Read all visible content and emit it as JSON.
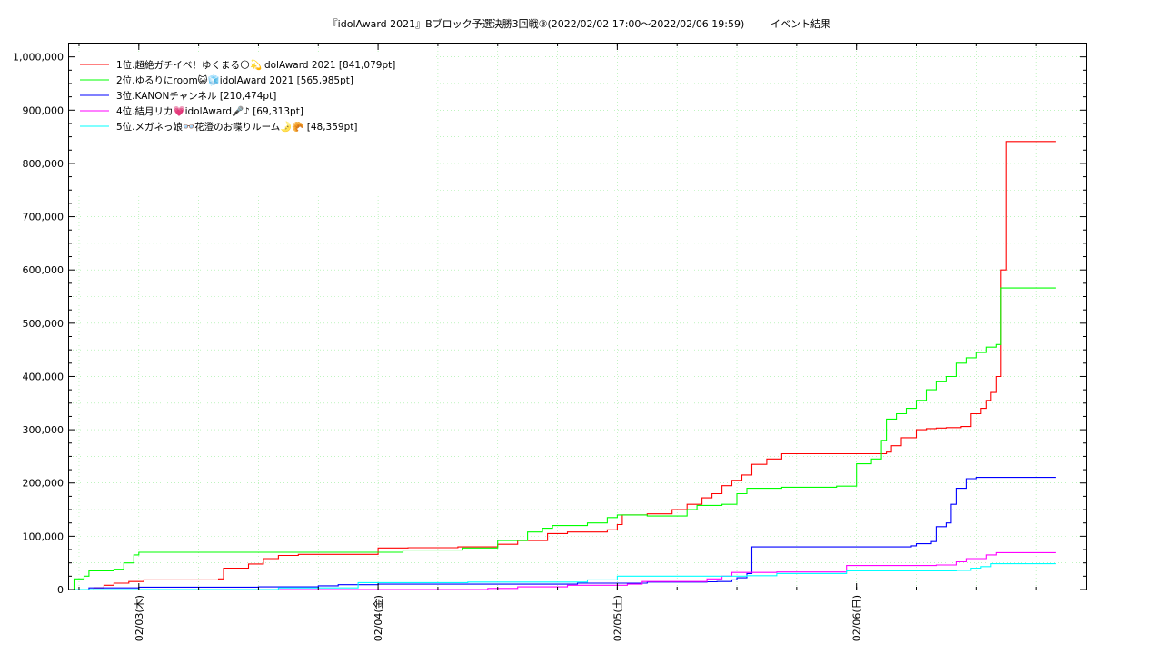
{
  "chart_data": {
    "type": "line",
    "title": "『idolAward 2021』Bブロック予選決勝3回戦③(2022/02/02 17:00～2022/02/06 19:59)",
    "subtitle": "イベント結果",
    "ylim": [
      0,
      1025000
    ],
    "y_ticks": [
      0,
      100000,
      200000,
      300000,
      400000,
      500000,
      600000,
      700000,
      800000,
      900000,
      1000000
    ],
    "y_tick_labels": [
      "0",
      "100,000",
      "200,000",
      "300,000",
      "400,000",
      "500,000",
      "600,000",
      "700,000",
      "800,000",
      "900,000",
      "1,000,000"
    ],
    "x_range": [
      "2022-02-02T17:00",
      "2022-02-06T23:00"
    ],
    "x_ticks": [
      {
        "x": "2022-02-03T00:00",
        "label": "02/03(木)"
      },
      {
        "x": "2022-02-04T00:00",
        "label": "02/04(金)"
      },
      {
        "x": "2022-02-05T00:00",
        "label": "02/05(土)"
      },
      {
        "x": "2022-02-06T00:00",
        "label": "02/06(日)"
      }
    ],
    "grid": true,
    "legend_position": "top-left",
    "series": [
      {
        "name": "1位.超絶ガチイベ！ゆくまる🌕💫idolAward 2021 [841,079pt]",
        "color": "#ff0000",
        "points": [
          [
            "2022-02-02T17:00",
            0
          ],
          [
            "2022-02-02T19:30",
            3000
          ],
          [
            "2022-02-02T20:30",
            8000
          ],
          [
            "2022-02-02T21:30",
            12000
          ],
          [
            "2022-02-02T23:00",
            15000
          ],
          [
            "2022-02-03T00:30",
            18000
          ],
          [
            "2022-02-03T08:00",
            20000
          ],
          [
            "2022-02-03T08:30",
            40000
          ],
          [
            "2022-02-03T11:00",
            48000
          ],
          [
            "2022-02-03T12:30",
            58000
          ],
          [
            "2022-02-03T14:00",
            64000
          ],
          [
            "2022-02-03T16:00",
            66000
          ],
          [
            "2022-02-04T00:00",
            78000
          ],
          [
            "2022-02-04T03:00",
            78500
          ],
          [
            "2022-02-04T08:00",
            80000
          ],
          [
            "2022-02-04T12:00",
            85000
          ],
          [
            "2022-02-04T14:00",
            92000
          ],
          [
            "2022-02-04T17:00",
            105000
          ],
          [
            "2022-02-04T19:00",
            108000
          ],
          [
            "2022-02-04T23:00",
            112000
          ],
          [
            "2022-02-05T00:00",
            122000
          ],
          [
            "2022-02-05T00:30",
            140000
          ],
          [
            "2022-02-05T03:00",
            142000
          ],
          [
            "2022-02-05T05:30",
            150000
          ],
          [
            "2022-02-05T07:00",
            160000
          ],
          [
            "2022-02-05T08:30",
            172000
          ],
          [
            "2022-02-05T09:30",
            180000
          ],
          [
            "2022-02-05T10:30",
            195000
          ],
          [
            "2022-02-05T11:30",
            205000
          ],
          [
            "2022-02-05T12:30",
            215000
          ],
          [
            "2022-02-05T13:30",
            235000
          ],
          [
            "2022-02-05T15:00",
            245000
          ],
          [
            "2022-02-05T16:30",
            255000
          ],
          [
            "2022-02-06T03:00",
            258000
          ],
          [
            "2022-02-06T03:30",
            270000
          ],
          [
            "2022-02-06T04:30",
            285000
          ],
          [
            "2022-02-06T06:00",
            300000
          ],
          [
            "2022-02-06T07:00",
            302000
          ],
          [
            "2022-02-06T08:00",
            303000
          ],
          [
            "2022-02-06T09:00",
            304000
          ],
          [
            "2022-02-06T10:30",
            306000
          ],
          [
            "2022-02-06T11:30",
            330000
          ],
          [
            "2022-02-06T12:30",
            340000
          ],
          [
            "2022-02-06T13:00",
            355000
          ],
          [
            "2022-02-06T13:30",
            370000
          ],
          [
            "2022-02-06T14:00",
            400000
          ],
          [
            "2022-02-06T14:30",
            600000
          ],
          [
            "2022-02-06T15:00",
            841079
          ],
          [
            "2022-02-06T19:59",
            841079
          ]
        ]
      },
      {
        "name": "2位.ゆるりにroom😺🧊idolAward 2021 [565,985pt]",
        "color": "#00ff00",
        "points": [
          [
            "2022-02-02T17:00",
            0
          ],
          [
            "2022-02-02T17:30",
            20000
          ],
          [
            "2022-02-02T18:30",
            25000
          ],
          [
            "2022-02-02T19:00",
            35000
          ],
          [
            "2022-02-02T21:30",
            38000
          ],
          [
            "2022-02-02T22:30",
            50000
          ],
          [
            "2022-02-02T23:30",
            65000
          ],
          [
            "2022-02-03T00:00",
            70000
          ],
          [
            "2022-02-04T00:00",
            70000
          ],
          [
            "2022-02-04T02:30",
            74000
          ],
          [
            "2022-02-04T08:30",
            78000
          ],
          [
            "2022-02-04T12:00",
            92000
          ],
          [
            "2022-02-04T15:00",
            108000
          ],
          [
            "2022-02-04T16:30",
            115000
          ],
          [
            "2022-02-04T17:30",
            120000
          ],
          [
            "2022-02-04T21:00",
            125000
          ],
          [
            "2022-02-04T23:00",
            135000
          ],
          [
            "2022-02-05T00:00",
            140000
          ],
          [
            "2022-02-05T03:00",
            138000
          ],
          [
            "2022-02-05T07:00",
            150000
          ],
          [
            "2022-02-05T08:00",
            158000
          ],
          [
            "2022-02-05T10:30",
            160000
          ],
          [
            "2022-02-05T12:00",
            180000
          ],
          [
            "2022-02-05T13:00",
            190000
          ],
          [
            "2022-02-05T16:30",
            192000
          ],
          [
            "2022-02-05T22:00",
            194000
          ],
          [
            "2022-02-06T00:00",
            236000
          ],
          [
            "2022-02-06T01:30",
            245000
          ],
          [
            "2022-02-06T02:30",
            280000
          ],
          [
            "2022-02-06T03:00",
            320000
          ],
          [
            "2022-02-06T04:00",
            330000
          ],
          [
            "2022-02-06T05:00",
            340000
          ],
          [
            "2022-02-06T06:00",
            355000
          ],
          [
            "2022-02-06T07:00",
            375000
          ],
          [
            "2022-02-06T08:00",
            390000
          ],
          [
            "2022-02-06T09:00",
            400000
          ],
          [
            "2022-02-06T10:00",
            425000
          ],
          [
            "2022-02-06T11:00",
            435000
          ],
          [
            "2022-02-06T12:00",
            445000
          ],
          [
            "2022-02-06T13:00",
            455000
          ],
          [
            "2022-02-06T14:00",
            460000
          ],
          [
            "2022-02-06T14:30",
            565985
          ],
          [
            "2022-02-06T19:59",
            565985
          ]
        ]
      },
      {
        "name": "3位.KANONチャンネル [210,474pt]",
        "color": "#0000ff",
        "points": [
          [
            "2022-02-02T17:00",
            0
          ],
          [
            "2022-02-02T19:00",
            3000
          ],
          [
            "2022-02-03T00:00",
            4500
          ],
          [
            "2022-02-03T12:00",
            5000
          ],
          [
            "2022-02-03T18:00",
            7000
          ],
          [
            "2022-02-03T20:00",
            9000
          ],
          [
            "2022-02-04T00:00",
            10000
          ],
          [
            "2022-02-04T20:00",
            12000
          ],
          [
            "2022-02-05T03:00",
            14000
          ],
          [
            "2022-02-05T09:00",
            14500
          ],
          [
            "2022-02-05T10:00",
            15000
          ],
          [
            "2022-02-05T11:30",
            18000
          ],
          [
            "2022-02-05T12:00",
            22000
          ],
          [
            "2022-02-05T13:00",
            30000
          ],
          [
            "2022-02-05T13:30",
            80000
          ],
          [
            "2022-02-06T05:30",
            82000
          ],
          [
            "2022-02-06T06:00",
            86000
          ],
          [
            "2022-02-06T07:30",
            90000
          ],
          [
            "2022-02-06T08:00",
            118000
          ],
          [
            "2022-02-06T09:00",
            125000
          ],
          [
            "2022-02-06T09:30",
            160000
          ],
          [
            "2022-02-06T10:00",
            190000
          ],
          [
            "2022-02-06T11:00",
            208000
          ],
          [
            "2022-02-06T12:00",
            210474
          ],
          [
            "2022-02-06T19:59",
            210474
          ]
        ]
      },
      {
        "name": "4位.結月リカ💗idolAward🎤♪ [69,313pt]",
        "color": "#ff00ff",
        "points": [
          [
            "2022-02-02T17:00",
            0
          ],
          [
            "2022-02-04T11:00",
            2000
          ],
          [
            "2022-02-04T14:00",
            5000
          ],
          [
            "2022-02-04T19:00",
            8000
          ],
          [
            "2022-02-05T01:00",
            10000
          ],
          [
            "2022-02-05T02:30",
            15000
          ],
          [
            "2022-02-05T09:00",
            20000
          ],
          [
            "2022-02-05T10:30",
            25000
          ],
          [
            "2022-02-05T11:30",
            32000
          ],
          [
            "2022-02-05T16:00",
            33000
          ],
          [
            "2022-02-05T23:00",
            45000
          ],
          [
            "2022-02-06T08:00",
            46000
          ],
          [
            "2022-02-06T10:00",
            52000
          ],
          [
            "2022-02-06T11:00",
            58000
          ],
          [
            "2022-02-06T13:00",
            65000
          ],
          [
            "2022-02-06T14:00",
            69313
          ],
          [
            "2022-02-06T19:59",
            69313
          ]
        ]
      },
      {
        "name": "5位.メガネっ娘👓花澄のお喋りルーム🌛🥐 [48,359pt]",
        "color": "#00ffff",
        "points": [
          [
            "2022-02-02T17:00",
            0
          ],
          [
            "2022-02-03T14:00",
            3000
          ],
          [
            "2022-02-03T22:00",
            13000
          ],
          [
            "2022-02-04T09:00",
            14000
          ],
          [
            "2022-02-04T21:00",
            18000
          ],
          [
            "2022-02-05T00:00",
            25000
          ],
          [
            "2022-02-05T13:00",
            26000
          ],
          [
            "2022-02-05T16:00",
            30000
          ],
          [
            "2022-02-05T23:00",
            35000
          ],
          [
            "2022-02-06T10:00",
            36000
          ],
          [
            "2022-02-06T11:30",
            40000
          ],
          [
            "2022-02-06T12:30",
            43000
          ],
          [
            "2022-02-06T13:30",
            48359
          ],
          [
            "2022-02-06T19:59",
            48359
          ]
        ]
      }
    ]
  }
}
